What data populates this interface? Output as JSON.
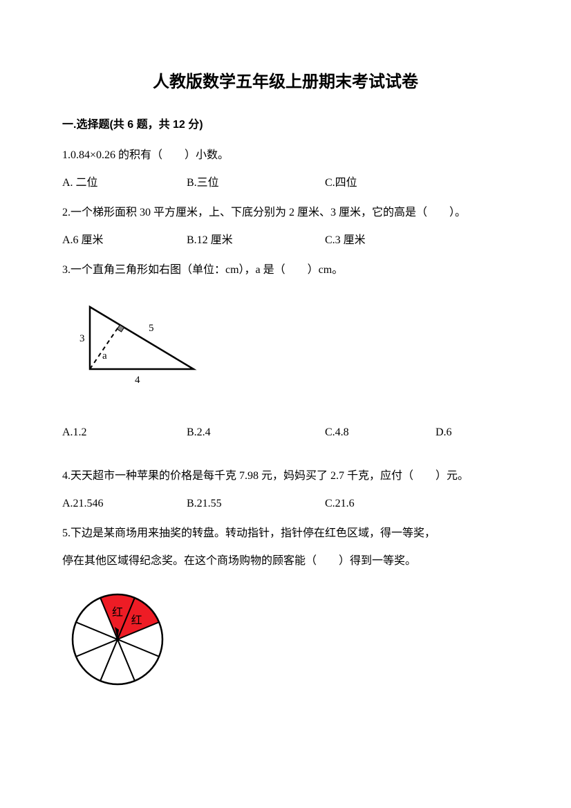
{
  "title": "人教版数学五年级上册期末考试试卷",
  "section1": {
    "header": "一.选择题(共 6 题，共 12 分)",
    "q1": {
      "text": "1.0.84×0.26 的积有（　　）小数。",
      "optA": "A. 二位",
      "optB": "B.三位",
      "optC": "C.四位"
    },
    "q2": {
      "text": "2.一个梯形面积 30 平方厘米，上、下底分别为 2 厘米、3 厘米，它的高是（　　）。",
      "optA": "A.6 厘米",
      "optB": "B.12 厘米",
      "optC": "C.3 厘米"
    },
    "q3": {
      "text": "3.一个直角三角形如右图（单位：cm），a 是（　　）cm。",
      "optA": "A.1.2",
      "optB": "B.2.4",
      "optC": "C.4.8",
      "optD": "D.6",
      "triangle": {
        "side_left": "3",
        "side_right": "5",
        "side_bottom": "4",
        "altitude": "a",
        "stroke": "#000000",
        "stroke_width": 2
      }
    },
    "q4": {
      "text": "4.天天超市一种苹果的价格是每千克 7.98 元，妈妈买了 2.7 千克，应付（　　）元。",
      "optA": "A.21.546",
      "optB": "B.21.55",
      "optC": "C.21.6"
    },
    "q5": {
      "text1": "5.下边是某商场用来抽奖的转盘。转动指针，指针停在红色区域，得一等奖，",
      "text2": "停在其他区域得纪念奖。在这个商场购物的顾客能（　　）得到一等奖。",
      "spinner": {
        "sectors": 8,
        "red_sectors": [
          0,
          1
        ],
        "red_labels": [
          "红",
          "红"
        ],
        "red_color": "#ee1c25",
        "white_color": "#ffffff",
        "stroke": "#000000",
        "stroke_width": 2,
        "pointer_color": "#000000"
      }
    }
  }
}
